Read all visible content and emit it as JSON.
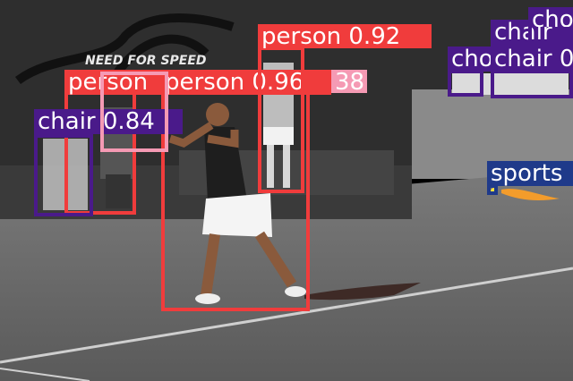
{
  "banner": {
    "text": "NEED FOR SPEED"
  },
  "colors": {
    "person": "#f03c3c",
    "chair": "#4a1a8a",
    "sports_ball": "#1f3a8a",
    "pink": "#f59ab4"
  },
  "detections": [
    {
      "id": "person-center",
      "label": "person 0.96",
      "cls": "person"
    },
    {
      "id": "person-right",
      "label": "person 0.92",
      "cls": "person"
    },
    {
      "id": "person-left",
      "label": "person",
      "cls": "person"
    },
    {
      "id": "chair-left",
      "label": "chair 0.84",
      "cls": "chair"
    },
    {
      "id": "pink-box",
      "label": "38",
      "cls": "pink"
    },
    {
      "id": "chair-top-a",
      "label": "chair",
      "cls": "chair"
    },
    {
      "id": "chair-top-b",
      "label": "cho",
      "cls": "chair"
    },
    {
      "id": "chair-top-c",
      "label": "chair 0",
      "cls": "chair"
    },
    {
      "id": "chair-top-d",
      "label": "cho",
      "cls": "chair"
    },
    {
      "id": "sports-ball",
      "label": "sports",
      "cls": "sports_ball"
    }
  ]
}
